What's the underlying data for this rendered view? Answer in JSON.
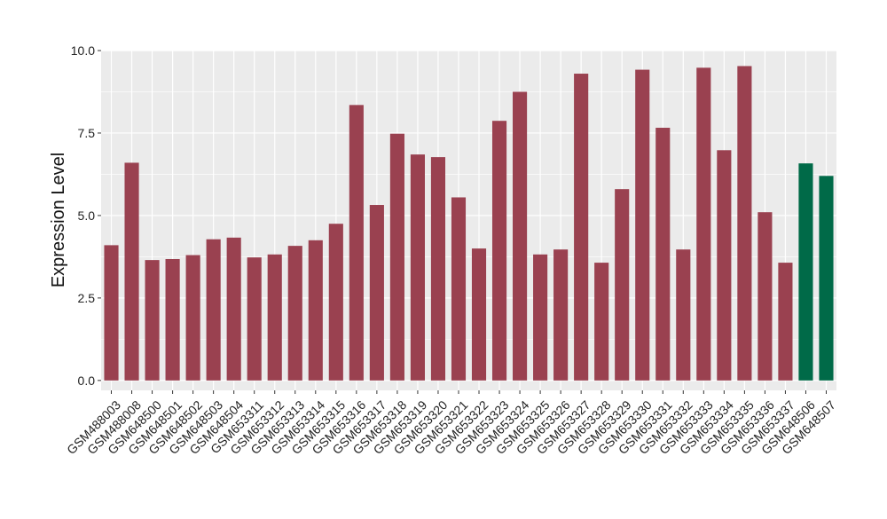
{
  "chart_data": {
    "type": "bar",
    "title": "",
    "xlabel": "",
    "ylabel": "Expression Level",
    "ylim": [
      -0.3,
      10.0
    ],
    "yticks": [
      0.0,
      2.5,
      5.0,
      7.5,
      10.0
    ],
    "ytick_labels": [
      "0.0",
      "2.5",
      "5.0",
      "7.5",
      "10.0"
    ],
    "grid": true,
    "legend": "none",
    "colors": {
      "default": "#9A4150",
      "highlight": "#006A48",
      "panel": "#EBEBEB",
      "grid": "#FFFFFF"
    },
    "categories": [
      "GSM488003",
      "GSM488008",
      "GSM648500",
      "GSM648501",
      "GSM648502",
      "GSM648503",
      "GSM648504",
      "GSM653311",
      "GSM653312",
      "GSM653313",
      "GSM653314",
      "GSM653315",
      "GSM653316",
      "GSM653317",
      "GSM653318",
      "GSM653319",
      "GSM653320",
      "GSM653321",
      "GSM653322",
      "GSM653323",
      "GSM653324",
      "GSM653325",
      "GSM653326",
      "GSM653327",
      "GSM653328",
      "GSM653329",
      "GSM653330",
      "GSM653331",
      "GSM653332",
      "GSM653333",
      "GSM653334",
      "GSM653335",
      "GSM653336",
      "GSM653337",
      "GSM648506",
      "GSM648507"
    ],
    "values": [
      4.1,
      6.6,
      3.65,
      3.68,
      3.8,
      4.28,
      4.33,
      3.73,
      3.82,
      4.08,
      4.25,
      4.75,
      8.35,
      5.32,
      7.48,
      6.85,
      6.77,
      5.55,
      4.0,
      7.87,
      8.75,
      3.82,
      3.97,
      9.3,
      3.57,
      5.8,
      9.42,
      7.66,
      3.97,
      9.48,
      6.98,
      9.53,
      5.1,
      3.57,
      6.58,
      6.2
    ],
    "highlight_indices": [
      34,
      35
    ]
  }
}
